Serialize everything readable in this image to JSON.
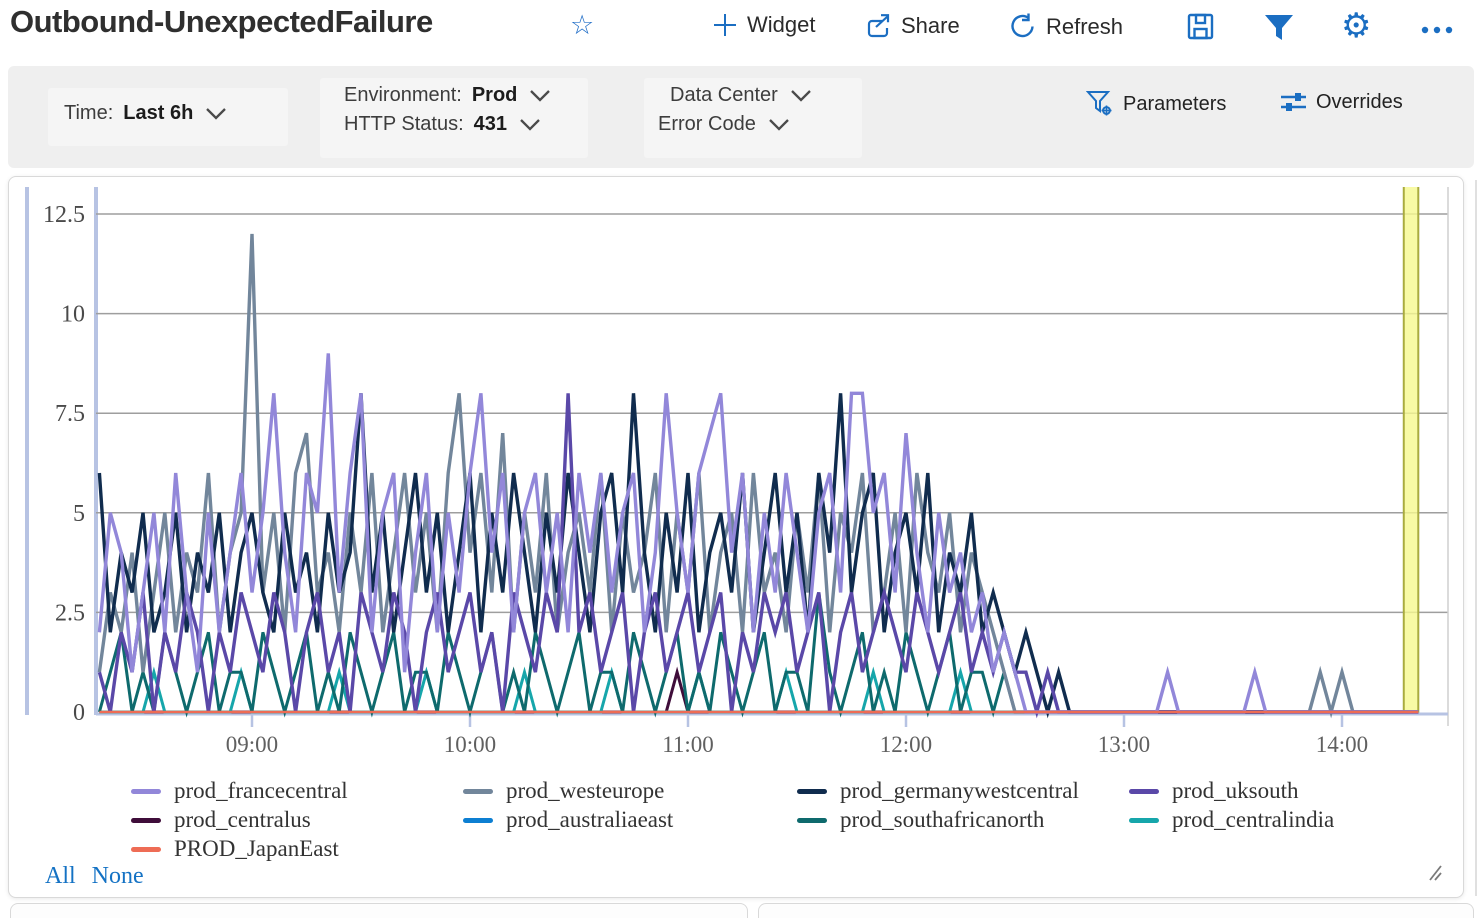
{
  "header": {
    "title": "Outbound-UnexpectedFailure",
    "actions": {
      "widget": "Widget",
      "share": "Share",
      "refresh": "Refresh"
    },
    "accent_color": "#1b6ec2"
  },
  "filter": {
    "time_label": "Time:",
    "time_value": "Last 6h",
    "environment_label": "Environment:",
    "environment_value": "Prod",
    "http_label": "HTTP Status:",
    "http_value": "431",
    "data_center_label": "Data Center",
    "error_code_label": "Error Code",
    "parameters_label": "Parameters",
    "overrides_label": "Overrides"
  },
  "legend_links": {
    "all": "All",
    "none": "None"
  },
  "chart_data": {
    "type": "line",
    "title": "",
    "xlabel": "",
    "ylabel": "",
    "grid": true,
    "x_axis": {
      "tick_labels": [
        "09:00",
        "10:00",
        "11:00",
        "12:00",
        "13:00",
        "14:00"
      ],
      "tick_minutes": [
        540,
        600,
        660,
        720,
        780,
        840
      ],
      "domain_minutes": [
        497,
        869
      ]
    },
    "y_axis": {
      "ticks": [
        0,
        2.5,
        5,
        7.5,
        10,
        12.5
      ],
      "tick_labels": [
        "0",
        "2.5",
        "5",
        "7.5",
        "10",
        "12.5"
      ],
      "ylim": [
        0,
        13.3
      ]
    },
    "highlight_band": {
      "start_minute": 857,
      "end_minute": 861,
      "fill": "#f6f98f",
      "border": "#a9ab3f"
    },
    "sample_start_minute": 498,
    "sample_step_minutes": 3,
    "draw_order": [
      "ae",
      "cu",
      "ci",
      "sa",
      "we",
      "gw",
      "uk",
      "fc",
      "je"
    ],
    "series": [
      {
        "id": "fc",
        "name": "prod_francecentral",
        "color": "#9287d9",
        "values": [
          2,
          5,
          4,
          1,
          3,
          5,
          2,
          6,
          3,
          1,
          5,
          2,
          4,
          6,
          3,
          5,
          8,
          4,
          2,
          6,
          5,
          9,
          3,
          6,
          8,
          2,
          5,
          6,
          1,
          4,
          6,
          2,
          5,
          3,
          6,
          8,
          4,
          6,
          2,
          5,
          6,
          3,
          5,
          2,
          6,
          4,
          6,
          3,
          5,
          6,
          2,
          4,
          8,
          5,
          3,
          6,
          7,
          8,
          4,
          6,
          2,
          5,
          3,
          6,
          4,
          2,
          5,
          6,
          3,
          8,
          8,
          5,
          6,
          3,
          7,
          4,
          2,
          5,
          3,
          4,
          2,
          3,
          1,
          2,
          1,
          0,
          0,
          0,
          0,
          0,
          0,
          0,
          0,
          0,
          0,
          0,
          0,
          0,
          1,
          0,
          0,
          0,
          0,
          0,
          0,
          0,
          1,
          0,
          0,
          0,
          0,
          0,
          0,
          0,
          0,
          0,
          0,
          0,
          0,
          0,
          0,
          0
        ]
      },
      {
        "id": "we",
        "name": "prod_westeurope",
        "color": "#72869b",
        "values": [
          1,
          3,
          2,
          4,
          1,
          3,
          5,
          2,
          4,
          3,
          6,
          2,
          4,
          5,
          12,
          3,
          5,
          2,
          6,
          7,
          3,
          4,
          2,
          5,
          3,
          6,
          2,
          4,
          6,
          3,
          5,
          2,
          6,
          8,
          4,
          6,
          3,
          7,
          2,
          5,
          3,
          6,
          2,
          4,
          5,
          3,
          6,
          2,
          5,
          3,
          4,
          6,
          2,
          5,
          3,
          6,
          2,
          4,
          5,
          2,
          6,
          3,
          4,
          2,
          5,
          3,
          6,
          2,
          5,
          4,
          6,
          2,
          3,
          5,
          2,
          6,
          4,
          3,
          5,
          2,
          4,
          3,
          2,
          1,
          0,
          0,
          0,
          0,
          0,
          0,
          0,
          0,
          0,
          0,
          0,
          0,
          0,
          0,
          0,
          0,
          0,
          0,
          0,
          0,
          0,
          0,
          0,
          0,
          0,
          0,
          0,
          0,
          1,
          0,
          1,
          0,
          0,
          0,
          0,
          0,
          0,
          0
        ]
      },
      {
        "id": "gw",
        "name": "prod_germanywestcentral",
        "color": "#102c4e",
        "values": [
          6,
          2,
          4,
          3,
          5,
          2,
          3,
          5,
          2,
          4,
          3,
          5,
          2,
          4,
          5,
          3,
          2,
          5,
          3,
          4,
          2,
          5,
          3,
          4,
          8,
          3,
          5,
          2,
          4,
          6,
          3,
          5,
          2,
          4,
          6,
          2,
          5,
          3,
          6,
          4,
          2,
          5,
          3,
          6,
          4,
          2,
          5,
          6,
          3,
          8,
          4,
          2,
          5,
          3,
          6,
          2,
          4,
          5,
          3,
          6,
          2,
          4,
          6,
          3,
          5,
          2,
          6,
          4,
          8,
          3,
          5,
          6,
          2,
          4,
          5,
          3,
          6,
          2,
          4,
          3,
          5,
          2,
          3,
          2,
          1,
          2,
          1,
          0,
          1,
          0,
          0,
          0,
          0,
          0,
          0,
          0,
          0,
          0,
          0,
          0,
          0,
          0,
          0,
          0,
          0,
          0,
          0,
          0,
          0,
          0,
          0,
          0,
          0,
          0,
          0,
          0,
          0,
          0,
          0,
          0,
          0,
          0
        ]
      },
      {
        "id": "uk",
        "name": "prod_uksouth",
        "color": "#5a48a8",
        "values": [
          1,
          0,
          2,
          1,
          3,
          0,
          2,
          1,
          3,
          2,
          0,
          2,
          1,
          3,
          2,
          1,
          3,
          2,
          0,
          2,
          3,
          1,
          2,
          0,
          3,
          2,
          1,
          3,
          2,
          0,
          2,
          3,
          1,
          2,
          3,
          1,
          2,
          0,
          3,
          2,
          1,
          3,
          2,
          8,
          2,
          3,
          1,
          2,
          3,
          0,
          2,
          3,
          1,
          2,
          3,
          1,
          2,
          3,
          0,
          2,
          1,
          3,
          2,
          3,
          1,
          2,
          3,
          0,
          2,
          3,
          1,
          2,
          3,
          2,
          1,
          3,
          2,
          1,
          2,
          3,
          1,
          2,
          1,
          2,
          1,
          1,
          0,
          1,
          0,
          0,
          0,
          0,
          0,
          0,
          0,
          0,
          0,
          0,
          0,
          0,
          0,
          0,
          0,
          0,
          0,
          0,
          0,
          0,
          0,
          0,
          0,
          0,
          0,
          0,
          0,
          0,
          0,
          0,
          0,
          0,
          0,
          0
        ]
      },
      {
        "id": "cu",
        "name": "prod_centralus",
        "color": "#3f0d3a",
        "values": [
          0,
          0,
          0,
          0,
          0,
          0,
          0,
          0,
          0,
          0,
          0,
          0,
          0,
          0,
          0,
          0,
          0,
          0,
          0,
          0,
          0,
          0,
          0,
          0,
          0,
          0,
          0,
          0,
          0,
          0,
          0,
          0,
          0,
          0,
          0,
          0,
          0,
          0,
          0,
          0,
          0,
          0,
          0,
          0,
          0,
          0,
          0,
          0,
          0,
          0,
          0,
          0,
          0,
          1,
          0,
          0,
          0,
          0,
          0,
          0,
          0,
          0,
          0,
          0,
          0,
          0,
          0,
          0,
          0,
          0,
          0,
          0,
          0,
          0,
          0,
          0,
          0,
          0,
          0,
          0,
          0,
          0,
          0,
          0,
          0,
          0,
          0,
          0,
          0,
          0,
          0,
          0,
          0,
          0,
          0,
          0,
          0,
          0,
          0,
          0,
          0,
          0,
          0,
          0,
          0,
          0,
          0,
          0,
          0,
          0,
          0,
          0,
          0,
          0,
          0,
          0,
          0,
          0,
          0,
          0,
          0,
          0
        ]
      },
      {
        "id": "ae",
        "name": "prod_australiaeast",
        "color": "#0d7fd2",
        "values": [
          0,
          0,
          0,
          0,
          0,
          0,
          0,
          0,
          0,
          0,
          0,
          0,
          0,
          0,
          0,
          0,
          0,
          0,
          0,
          0,
          0,
          0,
          0,
          0,
          0,
          0,
          0,
          0,
          0,
          0,
          0,
          0,
          0,
          0,
          0,
          0,
          0,
          0,
          0,
          0,
          0,
          0,
          0,
          0,
          0,
          0,
          0,
          0,
          0,
          0,
          0,
          0,
          0,
          0,
          0,
          0,
          0,
          0,
          0,
          0,
          0,
          0,
          0,
          0,
          0,
          0,
          0,
          0,
          0,
          0,
          0,
          0,
          0,
          0,
          0,
          0,
          0,
          0,
          0,
          0,
          0,
          0,
          0,
          0,
          0,
          0,
          0,
          0,
          0,
          0,
          0,
          0,
          0,
          0,
          0,
          0,
          0,
          0,
          0,
          0,
          0,
          0,
          0,
          0,
          0,
          0,
          0,
          0,
          0,
          0,
          0,
          0,
          0,
          0,
          0,
          0,
          0,
          0,
          0,
          0,
          0,
          0
        ]
      },
      {
        "id": "sa",
        "name": "prod_southafricanorth",
        "color": "#0e6a6d",
        "values": [
          0,
          1,
          2,
          0,
          1,
          0,
          2,
          1,
          0,
          1,
          2,
          0,
          1,
          1,
          0,
          2,
          1,
          0,
          1,
          2,
          0,
          1,
          0,
          2,
          1,
          0,
          1,
          2,
          0,
          1,
          1,
          0,
          2,
          1,
          0,
          1,
          2,
          0,
          1,
          0,
          2,
          1,
          0,
          1,
          2,
          0,
          1,
          1,
          0,
          2,
          1,
          0,
          1,
          2,
          0,
          1,
          0,
          2,
          1,
          0,
          1,
          2,
          0,
          1,
          1,
          0,
          3,
          1,
          0,
          1,
          2,
          0,
          1,
          0,
          2,
          1,
          0,
          1,
          2,
          0,
          1,
          1,
          0,
          1,
          0,
          0,
          0,
          0,
          0,
          0,
          0,
          0,
          0,
          0,
          0,
          0,
          0,
          0,
          0,
          0,
          0,
          0,
          0,
          0,
          0,
          0,
          0,
          0,
          0,
          0,
          0,
          0,
          0,
          0,
          0,
          0,
          0,
          0,
          0,
          0,
          0,
          0
        ]
      },
      {
        "id": "ci",
        "name": "prod_centralindia",
        "color": "#16a6ab",
        "values": [
          0,
          0,
          0,
          0,
          0,
          1,
          0,
          0,
          0,
          0,
          0,
          0,
          0,
          1,
          0,
          0,
          0,
          0,
          0,
          0,
          0,
          0,
          1,
          0,
          0,
          0,
          0,
          0,
          0,
          0,
          1,
          0,
          0,
          0,
          0,
          0,
          0,
          0,
          0,
          1,
          0,
          0,
          0,
          0,
          0,
          0,
          0,
          1,
          0,
          0,
          0,
          0,
          0,
          0,
          0,
          1,
          0,
          0,
          0,
          0,
          0,
          0,
          0,
          1,
          0,
          0,
          0,
          0,
          0,
          0,
          0,
          1,
          0,
          0,
          0,
          0,
          0,
          0,
          0,
          1,
          0,
          0,
          0,
          0,
          0,
          0,
          0,
          0,
          0,
          0,
          0,
          0,
          0,
          0,
          0,
          0,
          0,
          0,
          0,
          0,
          0,
          0,
          0,
          0,
          0,
          0,
          0,
          0,
          0,
          0,
          0,
          0,
          0,
          0,
          0,
          0,
          0,
          0,
          0,
          0,
          0,
          0
        ]
      },
      {
        "id": "je",
        "name": "PROD_JapanEast",
        "color": "#ee6c55",
        "values": [
          0,
          0,
          0,
          0,
          0,
          0,
          0,
          0,
          0,
          0,
          0,
          0,
          0,
          0,
          0,
          0,
          0,
          0,
          0,
          0,
          0,
          0,
          0,
          0,
          0,
          0,
          0,
          0,
          0,
          0,
          0,
          0,
          0,
          0,
          0,
          0,
          0,
          0,
          0,
          0,
          0,
          0,
          0,
          0,
          0,
          0,
          0,
          0,
          0,
          0,
          0,
          0,
          0,
          0,
          0,
          0,
          0,
          0,
          0,
          0,
          0,
          0,
          0,
          0,
          0,
          0,
          0,
          0,
          0,
          0,
          0,
          0,
          0,
          0,
          0,
          0,
          0,
          0,
          0,
          0,
          0,
          0,
          0,
          0,
          0,
          0,
          0,
          0,
          0,
          0,
          0,
          0,
          0,
          0,
          0,
          0,
          0,
          0,
          0,
          0,
          0,
          0,
          0,
          0,
          0,
          0,
          0,
          0,
          0,
          0,
          0,
          0,
          0,
          0,
          0,
          0,
          0,
          0,
          0,
          0,
          0,
          0
        ]
      }
    ],
    "legend_position": "bottom"
  }
}
